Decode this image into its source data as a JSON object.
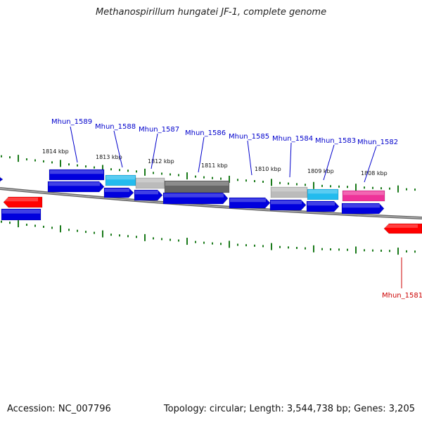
{
  "title": "Methanospirillum hungatei JF-1, complete genome",
  "footer": {
    "accession": "Accession: NC_007796",
    "topology": "Topology: circular; Length: 3,544,738 bp; Genes: 3,205"
  },
  "colors": {
    "backbone": "#888888",
    "scale_tick": "#1a7a1a",
    "cds_forward": "#0000dd",
    "cds_reverse": "#ff0000",
    "label_forward": "#0000cc",
    "label_reverse": "#cc0000",
    "feature_cyan": "#22bbee",
    "feature_lightgray": "#bbbbbb",
    "feature_darkgray": "#666666",
    "feature_magenta": "#ee3399"
  },
  "scale_labels": [
    "1814 kbp",
    "1813 kbp",
    "1812 kbp",
    "1811 kbp",
    "1810 kbp",
    "1809 kbp",
    "1808 kbp"
  ],
  "gene_labels": [
    "Mhun_1589",
    "Mhun_1588",
    "Mhun_1587",
    "Mhun_1586",
    "Mhun_1585",
    "Mhun_1584",
    "Mhun_1583",
    "Mhun_1582",
    "Mhun_1581"
  ]
}
